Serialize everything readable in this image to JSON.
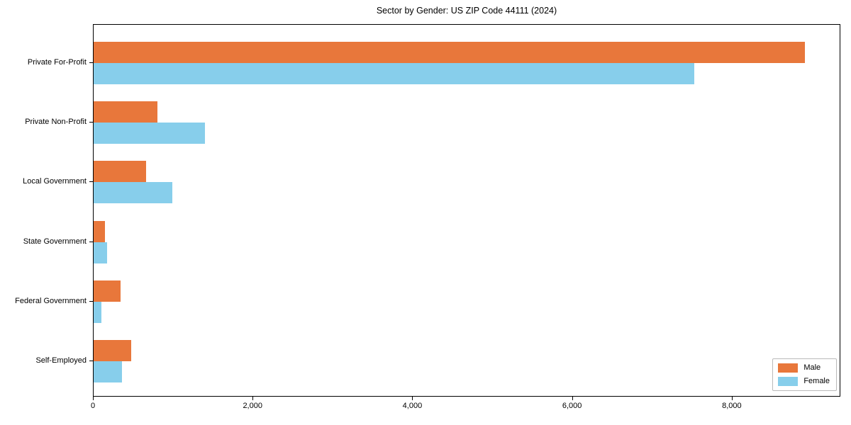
{
  "chart_data": {
    "type": "bar",
    "orientation": "horizontal",
    "title": "Sector by Gender: US ZIP Code 44111 (2024)",
    "categories": [
      "Private For-Profit",
      "Private Non-Profit",
      "Local Government",
      "State Government",
      "Federal Government",
      "Self-Employed"
    ],
    "series": [
      {
        "name": "Male",
        "color": "#e8773b",
        "values": [
          8920,
          800,
          660,
          140,
          340,
          470
        ]
      },
      {
        "name": "Female",
        "color": "#87ceeb",
        "values": [
          7540,
          1400,
          985,
          165,
          100,
          355
        ]
      }
    ],
    "xlabel": "",
    "ylabel": "",
    "xlim": [
      0,
      9360
    ],
    "xticks": [
      0,
      2000,
      4000,
      6000,
      8000
    ],
    "xtick_labels": [
      "0",
      "2,000",
      "4,000",
      "6,000",
      "8,000"
    ],
    "grid": false,
    "legend": {
      "position": "lower right",
      "entries": [
        "Male",
        "Female"
      ]
    },
    "frame_color": "#000000",
    "background_color": "#ffffff"
  }
}
